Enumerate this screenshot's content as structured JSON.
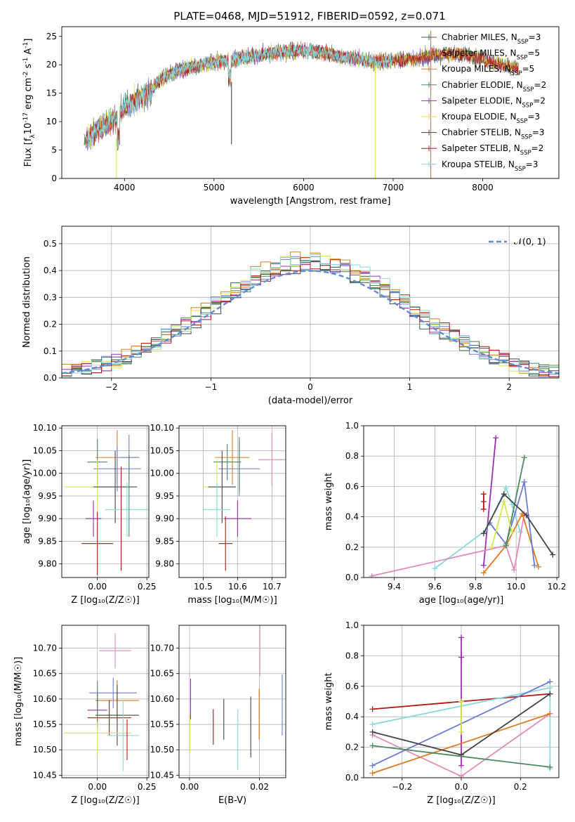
{
  "figure": {
    "title": "PLATE=0468, MJD=51912, FIBERID=0592, z=0.071"
  },
  "chart_data": [
    {
      "id": "spectrum",
      "type": "line",
      "xlabel": "wavelength [Angstrom, rest frame]",
      "ylabel_parts": [
        "Flux [f",
        "λ",
        "10",
        "-17",
        " erg cm",
        "-2",
        " s",
        "-1",
        " A",
        "-1",
        "]"
      ],
      "xlim": [
        3300,
        8850
      ],
      "ylim": [
        0,
        26.7
      ],
      "xticks": [
        4000,
        5000,
        6000,
        7000,
        8000
      ],
      "yticks": [
        0,
        5,
        10,
        15,
        20,
        25
      ],
      "grid": false,
      "legend_placement": "right",
      "series": [
        {
          "name_main": "Chabrier MILES, N",
          "name_sub": "SSP",
          "name_end": "=3",
          "color": "#2f6b3a"
        },
        {
          "name_main": "Salpeter MILES, N",
          "name_sub": "SSP",
          "name_end": "=5",
          "color": "#6a7bd6"
        },
        {
          "name_main": "Kroupa MILES, N",
          "name_sub": "SSP",
          "name_end": "=5",
          "color": "#e07b20"
        },
        {
          "name_main": "Chabrier ELODIE, N",
          "name_sub": "SSP",
          "name_end": "=2",
          "color": "#4e8a5c"
        },
        {
          "name_main": "Salpeter ELODIE, N",
          "name_sub": "SSP",
          "name_end": "=2",
          "color": "#9b2fae"
        },
        {
          "name_main": "Kroupa ELODIE, N",
          "name_sub": "SSP",
          "name_end": "=3",
          "color": "#d4e84a"
        },
        {
          "name_main": "Chabrier STELIB, N",
          "name_sub": "SSP",
          "name_end": "=3",
          "color": "#444444"
        },
        {
          "name_main": "Salpeter STELIB, N",
          "name_sub": "SSP",
          "name_end": "=2",
          "color": "#b01717"
        },
        {
          "name_main": "Kroupa STELIB, N",
          "name_sub": "SSP",
          "name_end": "=3",
          "color": "#86d8e0"
        }
      ],
      "continuum": {
        "x": [
          3550,
          3700,
          3800,
          3900,
          4000,
          4100,
          4200,
          4300,
          4400,
          4600,
          4800,
          5000,
          5200,
          5400,
          5600,
          5800,
          6000,
          6200,
          6400,
          6600,
          6800,
          7000,
          7200,
          7400,
          7600,
          7800,
          8000,
          8200,
          8400
        ],
        "y": [
          6.5,
          8.5,
          9.5,
          10.5,
          12.5,
          13.5,
          14.5,
          15.5,
          17.5,
          19.0,
          19.8,
          20.5,
          20.8,
          21.5,
          22.0,
          22.3,
          22.5,
          22.2,
          21.5,
          21.0,
          20.5,
          20.8,
          21.0,
          21.5,
          22.0,
          21.8,
          21.0,
          20.0,
          19.5
        ]
      },
      "spikes": [
        {
          "x": 3910,
          "y0": 0,
          "y1": 7,
          "color": "#d4e84a"
        },
        {
          "x": 5195,
          "y0": 6,
          "y1": 17,
          "color": "#444444"
        },
        {
          "x": 6800,
          "y0": 0,
          "y1": 20,
          "color": "#d4e84a"
        },
        {
          "x": 7420,
          "y0": 0,
          "y1": 26,
          "color": "#e07b20"
        }
      ]
    },
    {
      "id": "residual_hist",
      "type": "bar",
      "xlabel": "(data-model)/error",
      "ylabel": "Normed distribution",
      "xlim": [
        -2.5,
        2.5
      ],
      "ylim": [
        0,
        0.565
      ],
      "xticks": [
        -2,
        -1,
        0,
        1,
        2
      ],
      "xtick_labels": [
        "−2",
        "−1",
        "0",
        "1",
        "2"
      ],
      "yticks": [
        0.0,
        0.1,
        0.2,
        0.3,
        0.4,
        0.5
      ],
      "ytick_labels": [
        "0.0",
        "0.1",
        "0.2",
        "0.3",
        "0.4",
        "0.5"
      ],
      "grid": true,
      "legend": "𝒩(0, 1)",
      "legend_placement": "top-right",
      "normal_color": "#5e8ad6",
      "bin_width": 0.1,
      "colors": [
        "#2f6b3a",
        "#6a7bd6",
        "#e07b20",
        "#4e8a5c",
        "#9b2fae",
        "#d4e84a",
        "#444444",
        "#b01717",
        "#86d8e0"
      ]
    },
    {
      "id": "age_vs_Z",
      "type": "scatter",
      "xlabel": "Z [log₁₀(Z/Z☉)]",
      "ylabel": "age  [log₁₀(age/yr)]",
      "xlim": [
        -0.18,
        0.26
      ],
      "ylim": [
        9.77,
        10.105
      ],
      "xticks": [
        0.0,
        0.25
      ],
      "xtick_labels": [
        "0.00",
        "0.25"
      ],
      "yticks": [
        9.8,
        9.85,
        9.9,
        9.95,
        10.0,
        10.05,
        10.1
      ],
      "ytick_labels": [
        "9.80",
        "9.85",
        "9.90",
        "9.95",
        "10.00",
        "10.05",
        "10.10"
      ],
      "grid": true,
      "points": [
        {
          "x": 0.0,
          "y": 10.025,
          "xerr": 0.05,
          "yerr": 0.05,
          "color": "#4e8a5c"
        },
        {
          "x": 0.1,
          "y": 10.035,
          "xerr": 0.11,
          "yerr": 0.06,
          "color": "#e07b20"
        },
        {
          "x": 0.16,
          "y": 10.035,
          "xerr": 0.05,
          "yerr": 0.05,
          "color": "#6a7bd6"
        },
        {
          "x": 0.1,
          "y": 10.01,
          "xerr": 0.12,
          "yerr": 0.05,
          "color": "#6a7bd6"
        },
        {
          "x": 0.0,
          "y": 9.97,
          "xerr": 0.17,
          "yerr": 0.06,
          "color": "#d4e84a"
        },
        {
          "x": 0.09,
          "y": 9.97,
          "xerr": 0.11,
          "yerr": 0.08,
          "color": "#444444"
        },
        {
          "x": 0.15,
          "y": 9.92,
          "xerr": 0.11,
          "yerr": 0.06,
          "color": "#86d8e0"
        },
        {
          "x": -0.02,
          "y": 9.9,
          "xerr": 0.04,
          "yerr": 0.04,
          "color": "#9b2fae"
        },
        {
          "x": 0.0,
          "y": 9.845,
          "xerr": 0.08,
          "yerr": 0.07,
          "color": "#b01717"
        },
        {
          "x": 0.12,
          "y": 9.9,
          "xerr": 0.0,
          "yerr": 0.115,
          "color": "#b01717"
        },
        {
          "x": 0.16,
          "y": 9.95,
          "xerr": 0.0,
          "yerr": 0.09,
          "color": "#4e8a5c"
        }
      ]
    },
    {
      "id": "age_vs_mass",
      "type": "scatter",
      "xlabel": "mass [log₁₀(M/M☉)]",
      "ylabel": "",
      "xlim": [
        10.43,
        10.74
      ],
      "ylim": [
        9.77,
        10.105
      ],
      "xticks": [
        10.5,
        10.6,
        10.7
      ],
      "xtick_labels": [
        "10.5",
        "10.6",
        "10.7"
      ],
      "yticks": [
        9.8,
        9.85,
        9.9,
        9.95,
        10.0,
        10.05,
        10.1
      ],
      "ytick_labels": [
        "9.80",
        "9.85",
        "9.90",
        "9.95",
        "10.00",
        "10.05",
        "10.10"
      ],
      "grid": true,
      "points": [
        {
          "x": 10.57,
          "y": 10.025,
          "xerr": 0.04,
          "yerr": 0.04,
          "color": "#4e8a5c"
        },
        {
          "x": 10.585,
          "y": 10.035,
          "xerr": 0.05,
          "yerr": 0.06,
          "color": "#e07b20"
        },
        {
          "x": 10.605,
          "y": 10.01,
          "xerr": 0.06,
          "yerr": 0.06,
          "color": "#6a7bd6"
        },
        {
          "x": 10.7,
          "y": 10.03,
          "xerr": 0.04,
          "yerr": 0.06,
          "color": "#e38ab8"
        },
        {
          "x": 10.54,
          "y": 9.97,
          "xerr": 0.04,
          "yerr": 0.06,
          "color": "#d4e84a"
        },
        {
          "x": 10.555,
          "y": 9.97,
          "xerr": 0.04,
          "yerr": 0.08,
          "color": "#444444"
        },
        {
          "x": 10.54,
          "y": 9.92,
          "xerr": 0.04,
          "yerr": 0.06,
          "color": "#86d8e0"
        },
        {
          "x": 10.6,
          "y": 9.9,
          "xerr": 0.04,
          "yerr": 0.04,
          "color": "#9b2fae"
        },
        {
          "x": 10.565,
          "y": 9.845,
          "xerr": 0.02,
          "yerr": 0.06,
          "color": "#b01717"
        },
        {
          "x": 10.605,
          "y": 10.02,
          "xerr": 0.0,
          "yerr": 0.06,
          "color": "#4e8a5c"
        }
      ]
    },
    {
      "id": "weight_vs_age",
      "type": "line",
      "xlabel": "age  [log₁₀(age/yr)]",
      "ylabel": "mass weight",
      "xlim": [
        9.25,
        10.21
      ],
      "ylim": [
        0,
        1.0
      ],
      "xticks": [
        9.4,
        9.6,
        9.8,
        10.0,
        10.2
      ],
      "xtick_labels": [
        "9.4",
        "9.6",
        "9.8",
        "10.0",
        "10.2"
      ],
      "yticks": [
        0.0,
        0.2,
        0.4,
        0.6,
        0.8,
        1.0
      ],
      "ytick_labels": [
        "0.0",
        "0.2",
        "0.4",
        "0.6",
        "0.8",
        "1.0"
      ],
      "grid": true,
      "series": [
        {
          "color": "#b01717",
          "x": [
            9.84,
            9.84,
            9.84
          ],
          "y": [
            0.45,
            0.5,
            0.55
          ]
        },
        {
          "color": "#9b2fae",
          "x": [
            9.84,
            9.9
          ],
          "y": [
            0.08,
            0.92
          ]
        },
        {
          "color": "#86d8e0",
          "x": [
            9.6,
            9.85,
            9.95,
            9.98,
            10.02
          ],
          "y": [
            0.06,
            0.31,
            0.59,
            0.48,
            0.3
          ]
        },
        {
          "color": "#e38ab8",
          "x": [
            9.29,
            9.95,
            9.99,
            10.04
          ],
          "y": [
            0.01,
            0.21,
            0.05,
            0.42
          ]
        },
        {
          "color": "#e07b20",
          "x": [
            9.84,
            9.95,
            10.03,
            10.11
          ],
          "y": [
            0.03,
            0.21,
            0.42,
            0.07
          ]
        },
        {
          "color": "#6a7bd6",
          "x": [
            9.87,
            9.95,
            10.04,
            10.09
          ],
          "y": [
            0.36,
            0.22,
            0.63,
            0.08
          ]
        },
        {
          "color": "#4e8a5c",
          "x": [
            9.95,
            10.04
          ],
          "y": [
            0.21,
            0.79
          ]
        },
        {
          "color": "#444444",
          "x": [
            9.84,
            9.94,
            10.05,
            10.18
          ],
          "y": [
            0.29,
            0.55,
            0.41,
            0.15
          ]
        },
        {
          "color": "#d4e84a",
          "x": [
            9.88,
            9.94,
            9.98
          ],
          "y": [
            0.2,
            0.5,
            0.3
          ]
        }
      ]
    },
    {
      "id": "mass_vs_Z",
      "type": "scatter",
      "xlabel": "Z [log₁₀(Z/Z☉)]",
      "ylabel": "mass [log₁₀(M/M☉)]",
      "xlim": [
        -0.18,
        0.26
      ],
      "ylim": [
        10.445,
        10.745
      ],
      "xticks": [
        0.0,
        0.25
      ],
      "xtick_labels": [
        "0.00",
        "0.25"
      ],
      "yticks": [
        10.45,
        10.5,
        10.55,
        10.6,
        10.65,
        10.7
      ],
      "ytick_labels": [
        "10.45",
        "10.50",
        "10.55",
        "10.60",
        "10.65",
        "10.70"
      ],
      "grid": true,
      "points": [
        {
          "x": 0.09,
          "y": 10.695,
          "xerr": 0.08,
          "yerr": 0.035,
          "color": "#e38ab8"
        },
        {
          "x": 0.08,
          "y": 10.612,
          "xerr": 0.12,
          "yerr": 0.03,
          "color": "#6a7bd6"
        },
        {
          "x": 0.1,
          "y": 10.597,
          "xerr": 0.11,
          "yerr": 0.04,
          "color": "#e07b20"
        },
        {
          "x": 0.0,
          "y": 10.578,
          "xerr": 0.05,
          "yerr": 0.035,
          "color": "#9b2fae"
        },
        {
          "x": 0.1,
          "y": 10.568,
          "xerr": 0.11,
          "yerr": 0.06,
          "color": "#444444"
        },
        {
          "x": 0.06,
          "y": 10.563,
          "xerr": 0.11,
          "yerr": 0.035,
          "color": "#b01717"
        },
        {
          "x": 0.0,
          "y": 10.533,
          "xerr": 0.17,
          "yerr": 0.045,
          "color": "#d4e84a"
        },
        {
          "x": 0.13,
          "y": 10.528,
          "xerr": 0.08,
          "yerr": 0.07,
          "color": "#86d8e0"
        },
        {
          "x": 0.15,
          "y": 10.52,
          "xerr": 0.0,
          "yerr": 0.04,
          "color": "#b01717"
        },
        {
          "x": 0.0,
          "y": 10.595,
          "xerr": 0.0,
          "yerr": 0.04,
          "color": "#4e8a5c"
        }
      ]
    },
    {
      "id": "mass_vs_EBV",
      "type": "scatter",
      "xlabel": "E(B-V)",
      "ylabel": "",
      "xlim": [
        -0.003,
        0.0275
      ],
      "ylim": [
        10.445,
        10.745
      ],
      "xticks": [
        0.0,
        0.02
      ],
      "xtick_labels": [
        "0.00",
        "0.02"
      ],
      "yticks": [
        10.45,
        10.5,
        10.55,
        10.6,
        10.65,
        10.7
      ],
      "ytick_labels": [
        "10.45",
        "10.50",
        "10.55",
        "10.60",
        "10.65",
        "10.70"
      ],
      "grid": true,
      "points": [
        {
          "x": 0.0001,
          "y": 10.532,
          "xerr": 0,
          "yerr": 0.035,
          "color": "#d4e84a"
        },
        {
          "x": 0.0003,
          "y": 10.6,
          "xerr": 0,
          "yerr": 0.04,
          "color": "#9b2fae"
        },
        {
          "x": 0.0068,
          "y": 10.545,
          "xerr": 0,
          "yerr": 0.035,
          "color": "#b01717"
        },
        {
          "x": 0.0098,
          "y": 10.56,
          "xerr": 0,
          "yerr": 0.04,
          "color": "#444444"
        },
        {
          "x": 0.0138,
          "y": 10.52,
          "xerr": 0,
          "yerr": 0.06,
          "color": "#86d8e0"
        },
        {
          "x": 0.0175,
          "y": 10.545,
          "xerr": 0,
          "yerr": 0.06,
          "color": "#444444"
        },
        {
          "x": 0.0199,
          "y": 10.57,
          "xerr": 0,
          "yerr": 0.05,
          "color": "#e07b20"
        },
        {
          "x": 0.0201,
          "y": 10.695,
          "xerr": 0,
          "yerr": 0.05,
          "color": "#e38ab8"
        },
        {
          "x": 0.0265,
          "y": 10.588,
          "xerr": 0,
          "yerr": 0.06,
          "color": "#6a7bd6"
        }
      ]
    },
    {
      "id": "weight_vs_Z",
      "type": "line",
      "xlabel": "Z [log₁₀(Z/Z☉)]",
      "ylabel": "mass weight",
      "xlim": [
        -0.33,
        0.33
      ],
      "ylim": [
        0,
        1.0
      ],
      "xticks": [
        -0.2,
        0.0,
        0.2
      ],
      "xtick_labels": [
        "−0.2",
        "0.0",
        "0.2"
      ],
      "yticks": [
        0.0,
        0.2,
        0.4,
        0.6,
        0.8,
        1.0
      ],
      "ytick_labels": [
        "0.0",
        "0.2",
        "0.4",
        "0.6",
        "0.8",
        "1.0"
      ],
      "grid": true,
      "series": [
        {
          "color": "#b01717",
          "x": [
            -0.3,
            0.0,
            0.3
          ],
          "y": [
            0.45,
            0.5,
            0.55
          ]
        },
        {
          "color": "#9b2fae",
          "x": [
            0.0,
            0.0,
            0.0
          ],
          "y": [
            0.08,
            0.79,
            0.92
          ]
        },
        {
          "color": "#86d8e0",
          "x": [
            -0.3,
            0.3,
            0.3
          ],
          "y": [
            0.35,
            0.59,
            0.06
          ]
        },
        {
          "color": "#e38ab8",
          "x": [
            -0.3,
            0.0,
            0.3
          ],
          "y": [
            0.28,
            0.01,
            0.42
          ]
        },
        {
          "color": "#e07b20",
          "x": [
            -0.3,
            0.3
          ],
          "y": [
            0.03,
            0.42
          ]
        },
        {
          "color": "#6a7bd6",
          "x": [
            -0.3,
            0.3
          ],
          "y": [
            0.08,
            0.63
          ]
        },
        {
          "color": "#444444",
          "x": [
            -0.3,
            0.0,
            0.3
          ],
          "y": [
            0.3,
            0.15,
            0.55
          ]
        },
        {
          "color": "#d4e84a",
          "x": [
            0.0,
            0.0
          ],
          "y": [
            0.3,
            0.5
          ]
        },
        {
          "color": "#4e8a5c",
          "x": [
            -0.3,
            0.3
          ],
          "y": [
            0.21,
            0.07
          ]
        }
      ]
    }
  ]
}
